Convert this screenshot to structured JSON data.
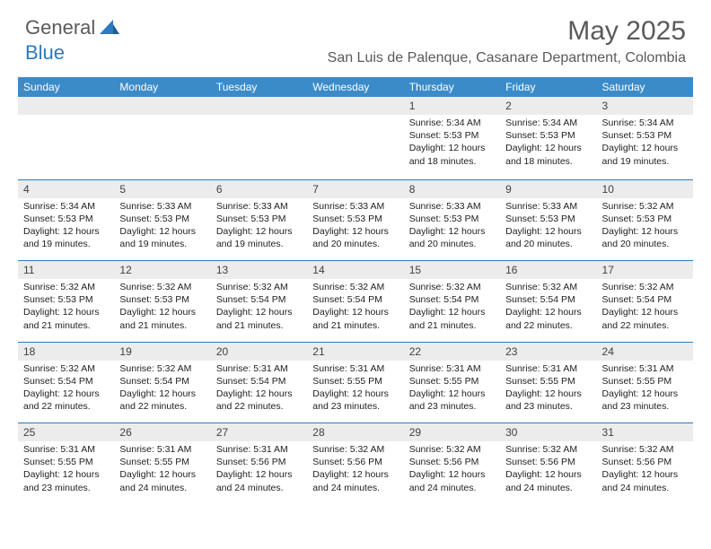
{
  "brand": {
    "part1": "General",
    "part2": "Blue"
  },
  "title": "May 2025",
  "location": "San Luis de Palenque, Casanare Department, Colombia",
  "dayHeaders": [
    "Sunday",
    "Monday",
    "Tuesday",
    "Wednesday",
    "Thursday",
    "Friday",
    "Saturday"
  ],
  "colors": {
    "headerBg": "#3b8bc9",
    "dayNumBg": "#ececec",
    "accent": "#2b7bbf",
    "textDark": "#5a5a5a"
  },
  "weeks": [
    [
      null,
      null,
      null,
      null,
      {
        "n": "1",
        "sr": "5:34 AM",
        "ss": "5:53 PM",
        "dl": "12 hours and 18 minutes."
      },
      {
        "n": "2",
        "sr": "5:34 AM",
        "ss": "5:53 PM",
        "dl": "12 hours and 18 minutes."
      },
      {
        "n": "3",
        "sr": "5:34 AM",
        "ss": "5:53 PM",
        "dl": "12 hours and 19 minutes."
      }
    ],
    [
      {
        "n": "4",
        "sr": "5:34 AM",
        "ss": "5:53 PM",
        "dl": "12 hours and 19 minutes."
      },
      {
        "n": "5",
        "sr": "5:33 AM",
        "ss": "5:53 PM",
        "dl": "12 hours and 19 minutes."
      },
      {
        "n": "6",
        "sr": "5:33 AM",
        "ss": "5:53 PM",
        "dl": "12 hours and 19 minutes."
      },
      {
        "n": "7",
        "sr": "5:33 AM",
        "ss": "5:53 PM",
        "dl": "12 hours and 20 minutes."
      },
      {
        "n": "8",
        "sr": "5:33 AM",
        "ss": "5:53 PM",
        "dl": "12 hours and 20 minutes."
      },
      {
        "n": "9",
        "sr": "5:33 AM",
        "ss": "5:53 PM",
        "dl": "12 hours and 20 minutes."
      },
      {
        "n": "10",
        "sr": "5:32 AM",
        "ss": "5:53 PM",
        "dl": "12 hours and 20 minutes."
      }
    ],
    [
      {
        "n": "11",
        "sr": "5:32 AM",
        "ss": "5:53 PM",
        "dl": "12 hours and 21 minutes."
      },
      {
        "n": "12",
        "sr": "5:32 AM",
        "ss": "5:53 PM",
        "dl": "12 hours and 21 minutes."
      },
      {
        "n": "13",
        "sr": "5:32 AM",
        "ss": "5:54 PM",
        "dl": "12 hours and 21 minutes."
      },
      {
        "n": "14",
        "sr": "5:32 AM",
        "ss": "5:54 PM",
        "dl": "12 hours and 21 minutes."
      },
      {
        "n": "15",
        "sr": "5:32 AM",
        "ss": "5:54 PM",
        "dl": "12 hours and 21 minutes."
      },
      {
        "n": "16",
        "sr": "5:32 AM",
        "ss": "5:54 PM",
        "dl": "12 hours and 22 minutes."
      },
      {
        "n": "17",
        "sr": "5:32 AM",
        "ss": "5:54 PM",
        "dl": "12 hours and 22 minutes."
      }
    ],
    [
      {
        "n": "18",
        "sr": "5:32 AM",
        "ss": "5:54 PM",
        "dl": "12 hours and 22 minutes."
      },
      {
        "n": "19",
        "sr": "5:32 AM",
        "ss": "5:54 PM",
        "dl": "12 hours and 22 minutes."
      },
      {
        "n": "20",
        "sr": "5:31 AM",
        "ss": "5:54 PM",
        "dl": "12 hours and 22 minutes."
      },
      {
        "n": "21",
        "sr": "5:31 AM",
        "ss": "5:55 PM",
        "dl": "12 hours and 23 minutes."
      },
      {
        "n": "22",
        "sr": "5:31 AM",
        "ss": "5:55 PM",
        "dl": "12 hours and 23 minutes."
      },
      {
        "n": "23",
        "sr": "5:31 AM",
        "ss": "5:55 PM",
        "dl": "12 hours and 23 minutes."
      },
      {
        "n": "24",
        "sr": "5:31 AM",
        "ss": "5:55 PM",
        "dl": "12 hours and 23 minutes."
      }
    ],
    [
      {
        "n": "25",
        "sr": "5:31 AM",
        "ss": "5:55 PM",
        "dl": "12 hours and 23 minutes."
      },
      {
        "n": "26",
        "sr": "5:31 AM",
        "ss": "5:55 PM",
        "dl": "12 hours and 24 minutes."
      },
      {
        "n": "27",
        "sr": "5:31 AM",
        "ss": "5:56 PM",
        "dl": "12 hours and 24 minutes."
      },
      {
        "n": "28",
        "sr": "5:32 AM",
        "ss": "5:56 PM",
        "dl": "12 hours and 24 minutes."
      },
      {
        "n": "29",
        "sr": "5:32 AM",
        "ss": "5:56 PM",
        "dl": "12 hours and 24 minutes."
      },
      {
        "n": "30",
        "sr": "5:32 AM",
        "ss": "5:56 PM",
        "dl": "12 hours and 24 minutes."
      },
      {
        "n": "31",
        "sr": "5:32 AM",
        "ss": "5:56 PM",
        "dl": "12 hours and 24 minutes."
      }
    ]
  ],
  "labels": {
    "sunrise": "Sunrise: ",
    "sunset": "Sunset: ",
    "daylight": "Daylight: "
  }
}
